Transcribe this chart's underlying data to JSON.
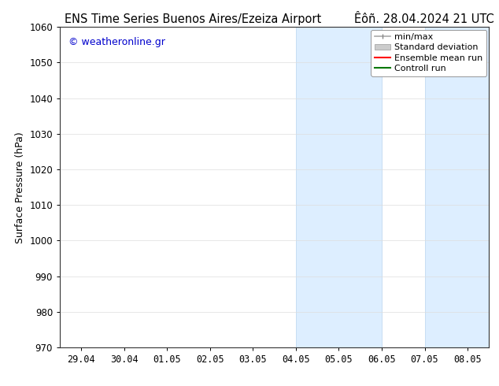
{
  "title_left": "ENS Time Series Buenos Aires/Ezeiza Airport",
  "title_right": "Êôñ. 28.04.2024 21 UTC",
  "ylabel": "Surface Pressure (hPa)",
  "ylim": [
    970,
    1060
  ],
  "yticks": [
    970,
    980,
    990,
    1000,
    1010,
    1020,
    1030,
    1040,
    1050,
    1060
  ],
  "x_labels": [
    "29.04",
    "30.04",
    "01.05",
    "02.05",
    "03.05",
    "04.05",
    "05.05",
    "06.05",
    "07.05",
    "08.05"
  ],
  "x_positions": [
    0,
    1,
    2,
    3,
    4,
    5,
    6,
    7,
    8,
    9
  ],
  "xlim": [
    -0.5,
    9.5
  ],
  "shaded_regions": [
    {
      "x_start": 5,
      "x_end": 7
    },
    {
      "x_start": 8,
      "x_end": 9.5
    }
  ],
  "shaded_color": "#ddeeff",
  "shaded_edge_color": "#b8d4ee",
  "watermark_text": "© weatheronline.gr",
  "watermark_color": "#0000cc",
  "bg_color": "#ffffff",
  "plot_bg_color": "#ffffff",
  "title_fontsize": 10.5,
  "tick_fontsize": 8.5,
  "label_fontsize": 9,
  "legend_fontsize": 8
}
